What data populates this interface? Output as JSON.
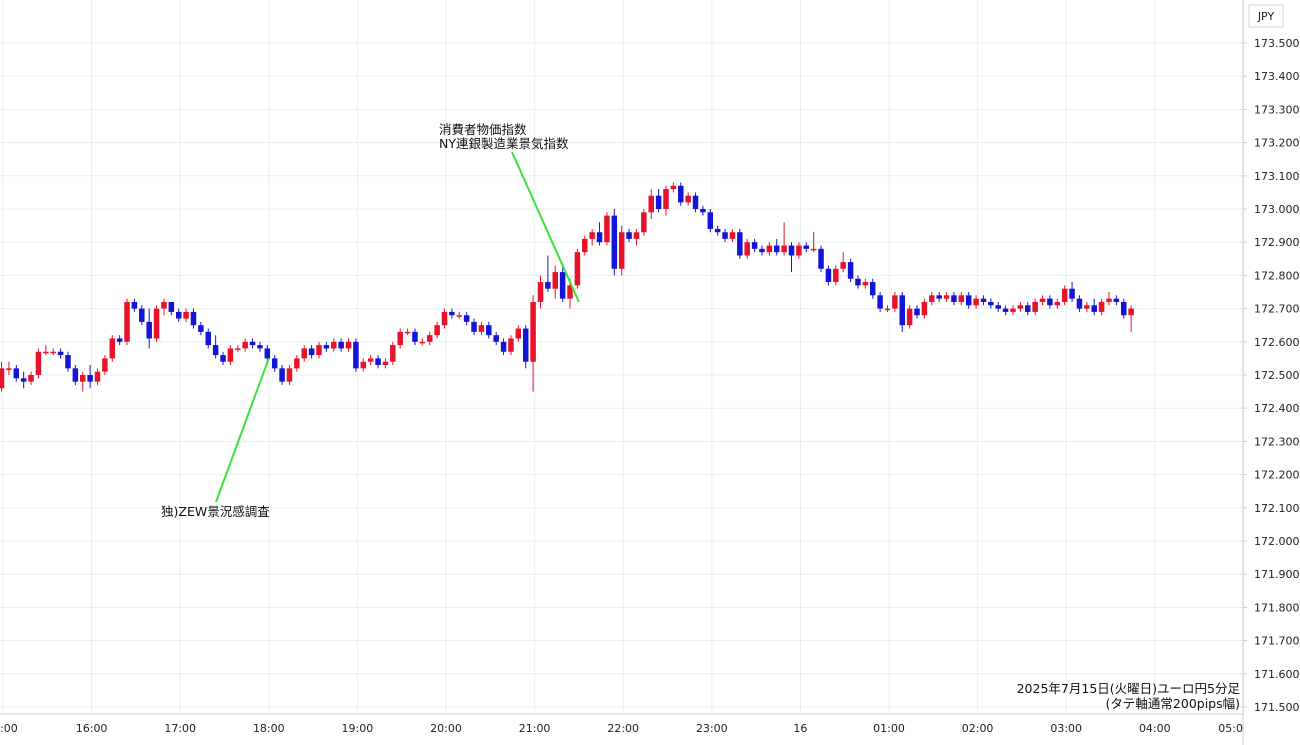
{
  "chart_data": {
    "type": "candlestick",
    "currency_label": "JPY",
    "caption_line1": "2025年7月15日(火曜日)ユーロ円5分足",
    "caption_line2": "(タテ軸通常200pips幅)",
    "ylim": [
      171.5,
      173.53
    ],
    "y_ticks": [
      "173.500",
      "173.400",
      "173.300",
      "173.200",
      "173.100",
      "173.000",
      "172.900",
      "172.800",
      "172.700",
      "172.600",
      "172.500",
      "172.400",
      "172.300",
      "172.200",
      "172.100",
      "172.000",
      "171.900",
      "171.800",
      "171.700",
      "171.600",
      "171.500"
    ],
    "x_ticks": [
      {
        "label": ":00",
        "hour": 15
      },
      {
        "label": "16:00",
        "hour": 16
      },
      {
        "label": "17:00",
        "hour": 17
      },
      {
        "label": "18:00",
        "hour": 18
      },
      {
        "label": "19:00",
        "hour": 19
      },
      {
        "label": "20:00",
        "hour": 20
      },
      {
        "label": "21:00",
        "hour": 21
      },
      {
        "label": "22:00",
        "hour": 22
      },
      {
        "label": "23:00",
        "hour": 23
      },
      {
        "label": "16",
        "hour": 24
      },
      {
        "label": "01:00",
        "hour": 25
      },
      {
        "label": "02:00",
        "hour": 26
      },
      {
        "label": "03:00",
        "hour": 27
      },
      {
        "label": "04:00",
        "hour": 28
      },
      {
        "label": "05:0",
        "hour": 29
      }
    ],
    "annotations": [
      {
        "lines": [
          "独)ZEW景況感調査"
        ],
        "anchor_hour": 18.0,
        "anchor_price": 172.55
      },
      {
        "lines": [
          "消費者物価指数",
          "NY連銀製造業景気指数"
        ],
        "anchor_hour": 21.5,
        "anchor_price": 172.72
      }
    ],
    "up_color": "#e8132a",
    "down_color": "#1414d4",
    "annotation_line_color": "#3ee03e",
    "candles_start_hour": 14.9,
    "candle_interval_hours": 0.08333,
    "candles": [
      [
        172.5,
        172.53,
        172.43,
        172.46
      ],
      [
        172.46,
        172.54,
        172.45,
        172.52
      ],
      [
        172.52,
        172.54,
        172.5,
        172.52
      ],
      [
        172.52,
        172.53,
        172.48,
        172.49
      ],
      [
        172.49,
        172.51,
        172.46,
        172.48
      ],
      [
        172.48,
        172.51,
        172.47,
        172.5
      ],
      [
        172.5,
        172.58,
        172.49,
        172.57
      ],
      [
        172.57,
        172.59,
        172.56,
        172.57
      ],
      [
        172.57,
        172.58,
        172.56,
        172.57
      ],
      [
        172.57,
        172.58,
        172.55,
        172.56
      ],
      [
        172.56,
        172.57,
        172.51,
        172.52
      ],
      [
        172.52,
        172.53,
        172.47,
        172.48
      ],
      [
        172.48,
        172.51,
        172.45,
        172.5
      ],
      [
        172.5,
        172.53,
        172.46,
        172.48
      ],
      [
        172.48,
        172.52,
        172.47,
        172.51
      ],
      [
        172.51,
        172.56,
        172.5,
        172.55
      ],
      [
        172.55,
        172.62,
        172.54,
        172.61
      ],
      [
        172.61,
        172.62,
        172.59,
        172.6
      ],
      [
        172.6,
        172.73,
        172.59,
        172.72
      ],
      [
        172.72,
        172.73,
        172.69,
        172.7
      ],
      [
        172.7,
        172.71,
        172.65,
        172.66
      ],
      [
        172.66,
        172.7,
        172.58,
        172.61
      ],
      [
        172.61,
        172.71,
        172.6,
        172.7
      ],
      [
        172.7,
        172.73,
        172.68,
        172.72
      ],
      [
        172.72,
        172.72,
        172.68,
        172.69
      ],
      [
        172.69,
        172.7,
        172.66,
        172.67
      ],
      [
        172.67,
        172.7,
        172.66,
        172.69
      ],
      [
        172.69,
        172.7,
        172.64,
        172.65
      ],
      [
        172.65,
        172.66,
        172.62,
        172.63
      ],
      [
        172.63,
        172.64,
        172.58,
        172.59
      ],
      [
        172.59,
        172.62,
        172.55,
        172.56
      ],
      [
        172.56,
        172.57,
        172.53,
        172.54
      ],
      [
        172.54,
        172.59,
        172.53,
        172.58
      ],
      [
        172.58,
        172.59,
        172.57,
        172.58
      ],
      [
        172.58,
        172.61,
        172.57,
        172.6
      ],
      [
        172.6,
        172.61,
        172.58,
        172.59
      ],
      [
        172.59,
        172.6,
        172.57,
        172.58
      ],
      [
        172.58,
        172.59,
        172.54,
        172.55
      ],
      [
        172.55,
        172.56,
        172.51,
        172.52
      ],
      [
        172.52,
        172.53,
        172.47,
        172.48
      ],
      [
        172.48,
        172.53,
        172.47,
        172.52
      ],
      [
        172.52,
        172.56,
        172.51,
        172.55
      ],
      [
        172.55,
        172.59,
        172.54,
        172.58
      ],
      [
        172.58,
        172.59,
        172.55,
        172.56
      ],
      [
        172.56,
        172.6,
        172.55,
        172.59
      ],
      [
        172.59,
        172.6,
        172.57,
        172.58
      ],
      [
        172.58,
        172.61,
        172.57,
        172.6
      ],
      [
        172.6,
        172.61,
        172.57,
        172.58
      ],
      [
        172.58,
        172.61,
        172.57,
        172.6
      ],
      [
        172.6,
        172.61,
        172.51,
        172.52
      ],
      [
        172.52,
        172.55,
        172.51,
        172.54
      ],
      [
        172.54,
        172.56,
        172.53,
        172.55
      ],
      [
        172.55,
        172.56,
        172.52,
        172.53
      ],
      [
        172.53,
        172.55,
        172.52,
        172.54
      ],
      [
        172.54,
        172.6,
        172.53,
        172.59
      ],
      [
        172.59,
        172.64,
        172.58,
        172.63
      ],
      [
        172.63,
        172.64,
        172.62,
        172.63
      ],
      [
        172.63,
        172.64,
        172.59,
        172.6
      ],
      [
        172.6,
        172.61,
        172.59,
        172.6
      ],
      [
        172.6,
        172.63,
        172.59,
        172.62
      ],
      [
        172.62,
        172.66,
        172.61,
        172.65
      ],
      [
        172.65,
        172.7,
        172.64,
        172.69
      ],
      [
        172.69,
        172.7,
        172.67,
        172.68
      ],
      [
        172.68,
        172.69,
        172.67,
        172.68
      ],
      [
        172.68,
        172.69,
        172.65,
        172.66
      ],
      [
        172.66,
        172.67,
        172.62,
        172.63
      ],
      [
        172.63,
        172.66,
        172.62,
        172.65
      ],
      [
        172.65,
        172.66,
        172.61,
        172.62
      ],
      [
        172.62,
        172.63,
        172.59,
        172.6
      ],
      [
        172.6,
        172.61,
        172.56,
        172.57
      ],
      [
        172.57,
        172.62,
        172.56,
        172.61
      ],
      [
        172.61,
        172.65,
        172.6,
        172.64
      ],
      [
        172.64,
        172.65,
        172.52,
        172.54
      ],
      [
        172.54,
        172.74,
        172.45,
        172.72
      ],
      [
        172.72,
        172.8,
        172.7,
        172.78
      ],
      [
        172.78,
        172.86,
        172.75,
        172.76
      ],
      [
        172.76,
        172.83,
        172.73,
        172.81
      ],
      [
        172.81,
        172.83,
        172.72,
        172.73
      ],
      [
        172.73,
        172.79,
        172.7,
        172.77
      ],
      [
        172.77,
        172.88,
        172.76,
        172.87
      ],
      [
        172.87,
        172.92,
        172.86,
        172.91
      ],
      [
        172.91,
        172.94,
        172.89,
        172.93
      ],
      [
        172.93,
        172.96,
        172.89,
        172.9
      ],
      [
        172.9,
        172.99,
        172.89,
        172.98
      ],
      [
        172.98,
        173.0,
        172.8,
        172.82
      ],
      [
        172.82,
        172.95,
        172.8,
        172.93
      ],
      [
        172.93,
        172.94,
        172.9,
        172.91
      ],
      [
        172.91,
        172.94,
        172.89,
        172.93
      ],
      [
        172.93,
        173.0,
        172.92,
        172.99
      ],
      [
        172.99,
        173.06,
        172.97,
        173.04
      ],
      [
        173.04,
        173.06,
        172.99,
        173.0
      ],
      [
        173.0,
        173.07,
        172.98,
        173.06
      ],
      [
        173.06,
        173.08,
        173.05,
        173.07
      ],
      [
        173.07,
        173.08,
        173.01,
        173.02
      ],
      [
        173.02,
        173.05,
        173.01,
        173.04
      ],
      [
        173.04,
        173.05,
        172.99,
        173.0
      ],
      [
        173.0,
        173.01,
        172.98,
        172.99
      ],
      [
        172.99,
        173.0,
        172.93,
        172.94
      ],
      [
        172.94,
        172.95,
        172.92,
        172.93
      ],
      [
        172.93,
        172.94,
        172.9,
        172.91
      ],
      [
        172.91,
        172.94,
        172.9,
        172.93
      ],
      [
        172.93,
        172.94,
        172.85,
        172.86
      ],
      [
        172.86,
        172.91,
        172.85,
        172.9
      ],
      [
        172.9,
        172.91,
        172.87,
        172.88
      ],
      [
        172.88,
        172.89,
        172.86,
        172.87
      ],
      [
        172.87,
        172.9,
        172.86,
        172.89
      ],
      [
        172.89,
        172.91,
        172.86,
        172.87
      ],
      [
        172.87,
        172.96,
        172.86,
        172.89
      ],
      [
        172.89,
        172.9,
        172.81,
        172.86
      ],
      [
        172.86,
        172.9,
        172.85,
        172.89
      ],
      [
        172.89,
        172.9,
        172.87,
        172.88
      ],
      [
        172.88,
        172.93,
        172.87,
        172.88
      ],
      [
        172.88,
        172.89,
        172.81,
        172.82
      ],
      [
        172.82,
        172.83,
        172.77,
        172.78
      ],
      [
        172.78,
        172.83,
        172.77,
        172.82
      ],
      [
        172.82,
        172.87,
        172.81,
        172.84
      ],
      [
        172.84,
        172.85,
        172.78,
        172.79
      ],
      [
        172.79,
        172.8,
        172.76,
        172.77
      ],
      [
        172.77,
        172.79,
        172.76,
        172.78
      ],
      [
        172.78,
        172.79,
        172.73,
        172.74
      ],
      [
        172.74,
        172.75,
        172.69,
        172.7
      ],
      [
        172.7,
        172.71,
        172.69,
        172.7
      ],
      [
        172.7,
        172.75,
        172.69,
        172.74
      ],
      [
        172.74,
        172.75,
        172.63,
        172.65
      ],
      [
        172.65,
        172.71,
        172.64,
        172.7
      ],
      [
        172.7,
        172.71,
        172.67,
        172.68
      ],
      [
        172.68,
        172.73,
        172.67,
        172.72
      ],
      [
        172.72,
        172.75,
        172.71,
        172.74
      ],
      [
        172.74,
        172.75,
        172.72,
        172.73
      ],
      [
        172.73,
        172.75,
        172.72,
        172.74
      ],
      [
        172.74,
        172.75,
        172.71,
        172.72
      ],
      [
        172.72,
        172.75,
        172.71,
        172.74
      ],
      [
        172.74,
        172.75,
        172.7,
        172.71
      ],
      [
        172.71,
        172.74,
        172.7,
        172.73
      ],
      [
        172.73,
        172.74,
        172.71,
        172.72
      ],
      [
        172.72,
        172.73,
        172.7,
        172.71
      ],
      [
        172.71,
        172.72,
        172.69,
        172.7
      ],
      [
        172.7,
        172.71,
        172.68,
        172.69
      ],
      [
        172.69,
        172.71,
        172.68,
        172.7
      ],
      [
        172.7,
        172.72,
        172.69,
        172.71
      ],
      [
        172.71,
        172.72,
        172.68,
        172.69
      ],
      [
        172.69,
        172.73,
        172.68,
        172.72
      ],
      [
        172.72,
        172.74,
        172.71,
        172.73
      ],
      [
        172.73,
        172.74,
        172.7,
        172.71
      ],
      [
        172.71,
        172.73,
        172.7,
        172.72
      ],
      [
        172.72,
        172.77,
        172.71,
        172.76
      ],
      [
        172.76,
        172.78,
        172.72,
        172.73
      ],
      [
        172.73,
        172.74,
        172.69,
        172.7
      ],
      [
        172.7,
        172.72,
        172.69,
        172.71
      ],
      [
        172.71,
        172.73,
        172.68,
        172.69
      ],
      [
        172.69,
        172.73,
        172.68,
        172.72
      ],
      [
        172.72,
        172.75,
        172.71,
        172.73
      ],
      [
        172.73,
        172.74,
        172.71,
        172.72
      ],
      [
        172.72,
        172.73,
        172.67,
        172.68
      ],
      [
        172.68,
        172.71,
        172.63,
        172.7
      ]
    ]
  }
}
